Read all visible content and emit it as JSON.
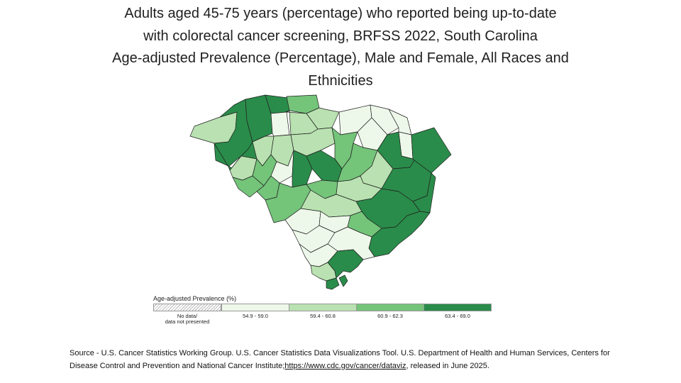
{
  "title": {
    "line1": "Adults aged 45-75 years (percentage) who reported being up-to-date",
    "line2": "with colorectal cancer screening, BRFSS 2022, South Carolina",
    "line3": "Age-adjusted Prevalence (Percentage), Male and Female, All Races and",
    "line4": "Ethnicities"
  },
  "legend": {
    "title": "Age-adjusted Prevalence (%)",
    "items": [
      {
        "label": "No data/\ndata not presented",
        "color": "hatch"
      },
      {
        "label": "54.9 - 59.0",
        "color": "#eef8ea"
      },
      {
        "label": "59.4 - 60.8",
        "color": "#b9e1b1"
      },
      {
        "label": "60.9 - 62.3",
        "color": "#74c47a"
      },
      {
        "label": "63.4 - 69.0",
        "color": "#2a8c4a"
      }
    ]
  },
  "source": {
    "text": "Source - U.S. Cancer Statistics Working Group. U.S. Cancer Statistics Data Visualizations Tool. U.S. Department of Health and Human Services, Centers for Disease Control and Prevention and National Cancer Institute;",
    "link": "https://www.cdc.gov/cancer/dataviz",
    "suffix": ", released in June 2025."
  },
  "colors": {
    "class1": "#eef8ea",
    "class2": "#b9e1b1",
    "class3": "#74c47a",
    "class4": "#2a8c4a"
  }
}
